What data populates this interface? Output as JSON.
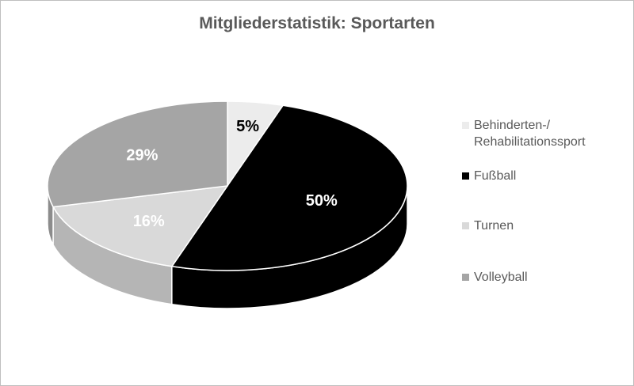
{
  "chart_data": {
    "type": "pie",
    "title": "Mitgliederstatistik: Sportarten",
    "categories": [
      "Behinderten-/ Rehabilitationssport",
      "Fußball",
      "Turnen",
      "Volleyball"
    ],
    "values": [
      5,
      50,
      16,
      29
    ],
    "labels": [
      "5%",
      "50%",
      "16%",
      "29%"
    ],
    "colors": [
      "#ececec",
      "#000000",
      "#d9d9d9",
      "#a5a5a5"
    ],
    "side_colors": [
      "#c8c8c8",
      "#000000",
      "#b5b5b5",
      "#8c8c8c"
    ],
    "label_colors": [
      "#000000",
      "#ffffff",
      "#ffffff",
      "#ffffff"
    ],
    "legend_position": "right",
    "legend": [
      {
        "lines": [
          "Behinderten-/",
          "Rehabilitationssport"
        ]
      },
      {
        "lines": [
          "Fußball"
        ]
      },
      {
        "lines": [
          "Turnen"
        ]
      },
      {
        "lines": [
          "Volleyball"
        ]
      }
    ]
  }
}
